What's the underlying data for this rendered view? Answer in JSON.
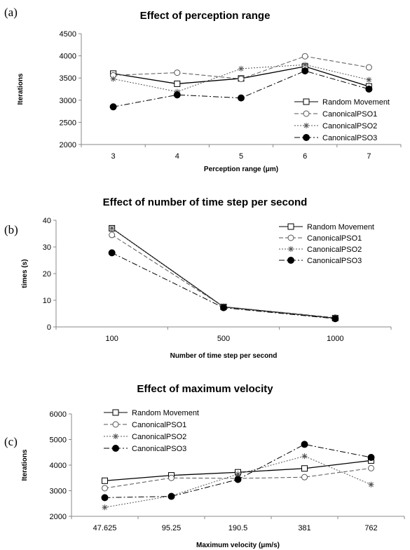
{
  "chart_data": [
    {
      "panel_label": "(a)",
      "type": "line",
      "title": "Effect of perception range",
      "xlabel": "Perception range (μm)",
      "ylabel": "Iterations",
      "categories": [
        "3",
        "4",
        "5",
        "6",
        "7"
      ],
      "ylim": [
        2000,
        4500
      ],
      "yticks": [
        "2000",
        "2500",
        "3000",
        "3500",
        "4000",
        "4500"
      ],
      "grid": false,
      "legend_position": "bottom-right",
      "series": [
        {
          "name": "Random Movement",
          "values": [
            3600,
            3370,
            3490,
            3760,
            3310
          ]
        },
        {
          "name": "CanonicalPSO1",
          "values": [
            3560,
            3620,
            3480,
            3990,
            3740
          ]
        },
        {
          "name": "CanonicalPSO2",
          "values": [
            3480,
            3190,
            3710,
            3800,
            3460
          ]
        },
        {
          "name": "CanonicalPSO3",
          "values": [
            2850,
            3120,
            3050,
            3660,
            3250
          ]
        }
      ]
    },
    {
      "panel_label": "(b)",
      "type": "line",
      "title": "Effect of number of time step per second",
      "xlabel": "Number of time step per second",
      "ylabel": "times (s)",
      "categories": [
        "100",
        "500",
        "1000"
      ],
      "ylim": [
        0,
        40
      ],
      "yticks": [
        "0",
        "10",
        "20",
        "30",
        "40"
      ],
      "grid": false,
      "legend_position": "top-right",
      "series": [
        {
          "name": "Random Movement",
          "values": [
            37,
            7.5,
            3.3
          ]
        },
        {
          "name": "CanonicalPSO1",
          "values": [
            34.5,
            7.6,
            3.5
          ]
        },
        {
          "name": "CanonicalPSO2",
          "values": [
            37,
            7.4,
            3.3
          ]
        },
        {
          "name": "CanonicalPSO3",
          "values": [
            27.8,
            7.2,
            3.1
          ]
        }
      ]
    },
    {
      "panel_label": "(c)",
      "type": "line",
      "title": "Effect of maximum velocity",
      "xlabel": "Maximum velocity (μm/s)",
      "ylabel": "Iterations",
      "categories": [
        "47.625",
        "95.25",
        "190.5",
        "381",
        "762"
      ],
      "ylim": [
        2000,
        6000
      ],
      "yticks": [
        "2000",
        "3000",
        "4000",
        "5000",
        "6000"
      ],
      "grid": false,
      "legend_position": "top-left",
      "series": [
        {
          "name": "Random Movement",
          "values": [
            3390,
            3600,
            3720,
            3870,
            4180
          ]
        },
        {
          "name": "CanonicalPSO1",
          "values": [
            3100,
            3500,
            3480,
            3530,
            3880
          ]
        },
        {
          "name": "CanonicalPSO2",
          "values": [
            2350,
            2800,
            3650,
            4350,
            3240
          ]
        },
        {
          "name": "CanonicalPSO3",
          "values": [
            2730,
            2780,
            3440,
            4810,
            4300
          ]
        }
      ]
    }
  ],
  "styles": {
    "series_colors": [
      "#000000",
      "#555555",
      "#555555",
      "#000000"
    ],
    "series_dash": [
      "solid",
      "dashed",
      "dotted",
      "dashdot"
    ],
    "series_markers": [
      "square",
      "circle",
      "star",
      "filled-circle"
    ]
  }
}
